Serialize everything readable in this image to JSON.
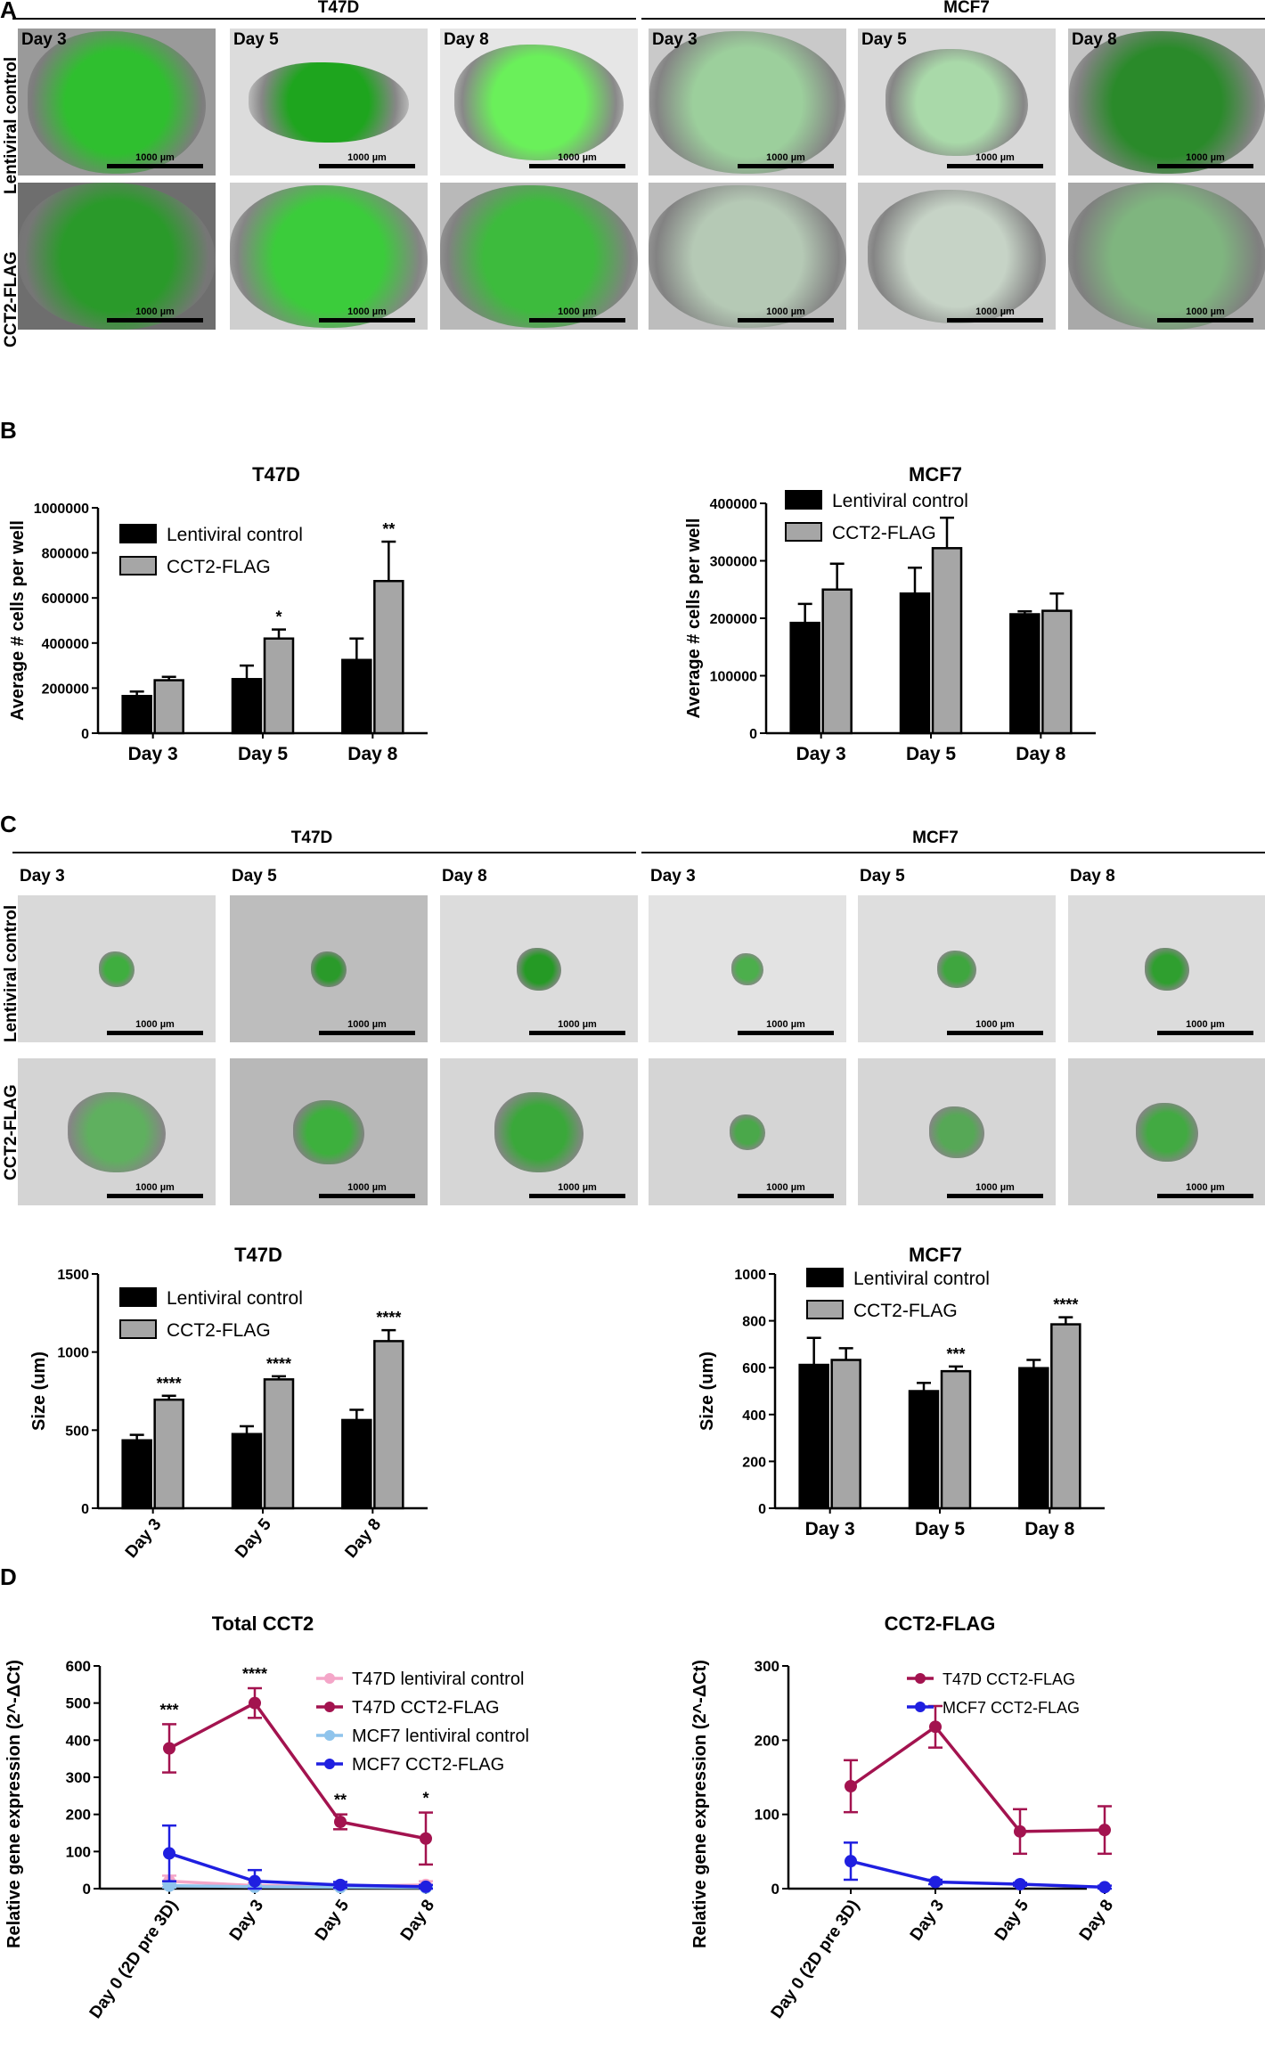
{
  "panelA": {
    "letter": "A",
    "groups": [
      "T47D",
      "MCF7"
    ],
    "rows": [
      "Lentiviral control",
      "CCT2-FLAG"
    ],
    "days": [
      "Day 3",
      "Day 5",
      "Day 8",
      "Day 3",
      "Day 5",
      "Day 8"
    ],
    "scale_label": "1000 µm"
  },
  "panelB": {
    "letter": "B"
  },
  "panelC": {
    "letter": "C",
    "groups": [
      "T47D",
      "MCF7"
    ],
    "rows": [
      "Lentiviral control",
      "CCT2-FLAG"
    ],
    "days": [
      "Day 3",
      "Day 5",
      "Day 8",
      "Day 3",
      "Day 5",
      "Day 8"
    ],
    "scale_label": "1000 µm"
  },
  "panelD": {
    "letter": "D"
  },
  "colors": {
    "control_bar": "#000000",
    "flag_bar": "#a6a6a6",
    "t47d_control": "#f4a6c8",
    "t47d_flag": "#a3134f",
    "mcf7_control": "#8fc4ec",
    "mcf7_flag": "#1f1fe0"
  },
  "chart_data": [
    {
      "id": "B-T47D",
      "type": "bar",
      "title": "T47D",
      "ylabel": "Average # cells per well",
      "xlabel": "",
      "categories": [
        "Day 3",
        "Day 5",
        "Day 8"
      ],
      "ylim": [
        0,
        1000000
      ],
      "yticks": [
        "0",
        "200000",
        "400000",
        "600000",
        "800000",
        "1000000"
      ],
      "series": [
        {
          "name": "Lentiviral control",
          "values": [
            165000,
            240000,
            325000
          ],
          "errors": [
            20000,
            60000,
            95000
          ]
        },
        {
          "name": "CCT2-FLAG",
          "values": [
            235000,
            420000,
            675000
          ],
          "errors": [
            15000,
            40000,
            175000
          ]
        }
      ],
      "annotations": [
        "",
        "*",
        "**"
      ],
      "legend": "top-left",
      "grid": false
    },
    {
      "id": "B-MCF7",
      "type": "bar",
      "title": "MCF7",
      "ylabel": "Average # cells per well",
      "xlabel": "",
      "categories": [
        "Day 3",
        "Day 5",
        "Day 8"
      ],
      "ylim": [
        0,
        400000
      ],
      "yticks": [
        "0",
        "100000",
        "200000",
        "300000",
        "400000"
      ],
      "series": [
        {
          "name": "Lentiviral control",
          "values": [
            192000,
            243000,
            207000
          ],
          "errors": [
            33000,
            45000,
            5000
          ]
        },
        {
          "name": "CCT2-FLAG",
          "values": [
            250000,
            322000,
            213000
          ],
          "errors": [
            45000,
            53000,
            30000
          ]
        }
      ],
      "annotations": [
        "",
        "",
        ""
      ],
      "legend": "top-left",
      "grid": false
    },
    {
      "id": "C-T47D",
      "type": "bar",
      "title": "T47D",
      "ylabel": "Size (um)",
      "xlabel": "",
      "categories": [
        "Day 3",
        "Day 5",
        "Day 8"
      ],
      "ylim": [
        0,
        1500
      ],
      "yticks": [
        "0",
        "500",
        "1000",
        "1500"
      ],
      "series": [
        {
          "name": "Lentiviral control",
          "values": [
            435,
            475,
            565
          ],
          "errors": [
            35,
            50,
            65
          ]
        },
        {
          "name": "CCT2-FLAG",
          "values": [
            695,
            825,
            1070
          ],
          "errors": [
            25,
            20,
            70
          ]
        }
      ],
      "annotations": [
        "****",
        "****",
        "****"
      ],
      "legend": "top-left",
      "grid": false
    },
    {
      "id": "C-MCF7",
      "type": "bar",
      "title": "MCF7",
      "ylabel": "Size (um)",
      "xlabel": "",
      "categories": [
        "Day 3",
        "Day 5",
        "Day 8"
      ],
      "ylim": [
        0,
        1000
      ],
      "yticks": [
        "0",
        "200",
        "400",
        "600",
        "800",
        "1000"
      ],
      "series": [
        {
          "name": "Lentiviral control",
          "values": [
            612,
            500,
            598
          ],
          "errors": [
            115,
            35,
            35
          ]
        },
        {
          "name": "CCT2-FLAG",
          "values": [
            633,
            585,
            785
          ],
          "errors": [
            50,
            20,
            30
          ]
        }
      ],
      "annotations": [
        "",
        "***",
        "****"
      ],
      "legend": "top-left",
      "grid": false
    },
    {
      "id": "D-Total",
      "type": "line",
      "title": "Total CCT2",
      "ylabel": "Relative gene expression (2^-ΔCt)",
      "xlabel": "",
      "categories": [
        "Day 0 (2D pre 3D)",
        "Day 3",
        "Day 5",
        "Day 8"
      ],
      "ylim": [
        0,
        600
      ],
      "yticks": [
        "0",
        "100",
        "200",
        "300",
        "400",
        "500",
        "600"
      ],
      "series": [
        {
          "name": "T47D lentiviral control",
          "values": [
            20,
            8,
            6,
            10
          ],
          "errors": [
            15,
            8,
            5,
            10
          ]
        },
        {
          "name": "T47D CCT2-FLAG",
          "values": [
            378,
            500,
            180,
            135
          ],
          "errors": [
            65,
            40,
            20,
            70
          ]
        },
        {
          "name": "MCF7 lentiviral control",
          "values": [
            8,
            5,
            4,
            3
          ],
          "errors": [
            5,
            4,
            3,
            2
          ]
        },
        {
          "name": "MCF7 CCT2-FLAG",
          "values": [
            95,
            20,
            10,
            5
          ],
          "errors": [
            75,
            30,
            8,
            5
          ]
        }
      ],
      "annotations": [
        "***",
        "****",
        "**",
        "*"
      ],
      "legend": "top-right",
      "grid": false
    },
    {
      "id": "D-FLAG",
      "type": "line",
      "title": "CCT2-FLAG",
      "ylabel": "Relative gene expression (2^-ΔCt)",
      "xlabel": "",
      "categories": [
        "Day 0 (2D pre 3D)",
        "Day 3",
        "Day 5",
        "Day 8"
      ],
      "ylim": [
        0,
        300
      ],
      "yticks": [
        "0",
        "100",
        "200",
        "300"
      ],
      "series": [
        {
          "name": "T47D CCT2-FLAG",
          "values": [
            138,
            218,
            77,
            79
          ],
          "errors": [
            35,
            28,
            30,
            32
          ]
        },
        {
          "name": "MCF7 CCT2-FLAG",
          "values": [
            37,
            9,
            6,
            2
          ],
          "errors": [
            25,
            3,
            2,
            2
          ]
        }
      ],
      "annotations": [
        "",
        "",
        "",
        ""
      ],
      "legend": "top-right",
      "grid": false
    }
  ]
}
